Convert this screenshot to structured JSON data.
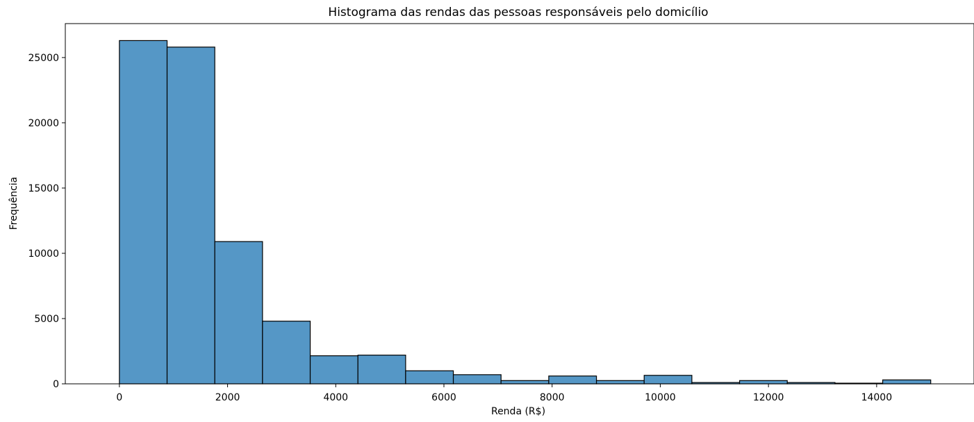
{
  "chart_data": {
    "type": "bar",
    "title": "Histograma das rendas das pessoas responsáveis pelo domicílio",
    "xlabel": "Renda (R$)",
    "ylabel": "Frequência",
    "xlim": [
      -1000,
      15800
    ],
    "ylim": [
      0,
      27600
    ],
    "xticks": [
      0,
      2000,
      4000,
      6000,
      8000,
      10000,
      12000,
      14000
    ],
    "yticks": [
      0,
      5000,
      10000,
      15000,
      20000,
      25000
    ],
    "bin_edges": [
      0,
      882,
      1764,
      2646,
      3528,
      4410,
      5292,
      6174,
      7056,
      7938,
      8820,
      9702,
      10584,
      11466,
      12348,
      13230,
      14112,
      15000
    ],
    "values": [
      26300,
      25800,
      10900,
      4800,
      2150,
      2200,
      1000,
      700,
      250,
      600,
      250,
      650,
      100,
      250,
      100,
      50,
      300
    ],
    "bar_color": "#5597c6",
    "edge_color": "#000000",
    "grid": false
  }
}
